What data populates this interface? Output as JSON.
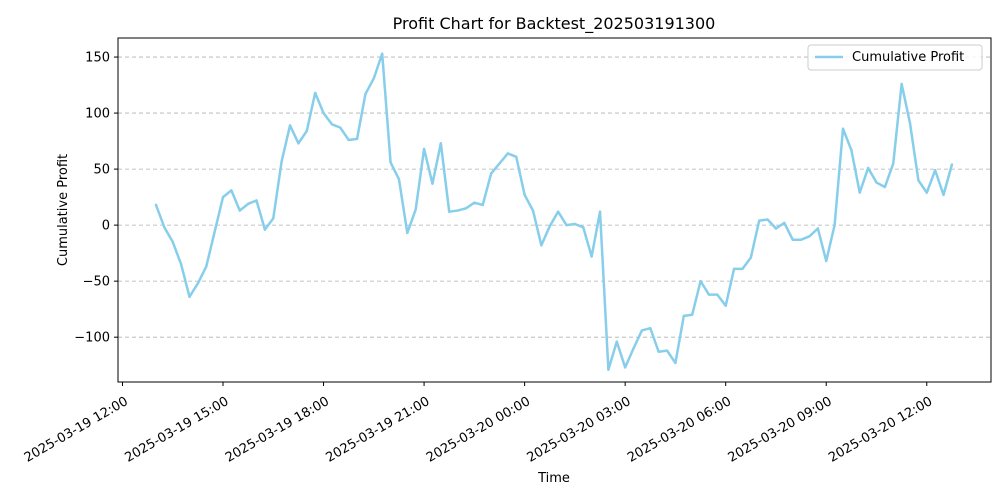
{
  "chart_data": {
    "type": "line",
    "title": "Profit Chart for Backtest_202503191300",
    "xlabel": "Time",
    "ylabel": "Cumulative Profit",
    "xlim": [
      "2025-03-19 11:52",
      "2025-03-20 13:55"
    ],
    "ylim": [
      -140,
      167
    ],
    "x_ticks": [
      {
        "t": "2025-03-19 12:00",
        "label": "2025-03-19 12:00"
      },
      {
        "t": "2025-03-19 15:00",
        "label": "2025-03-19 15:00"
      },
      {
        "t": "2025-03-19 18:00",
        "label": "2025-03-19 18:00"
      },
      {
        "t": "2025-03-19 21:00",
        "label": "2025-03-19 21:00"
      },
      {
        "t": "2025-03-20 00:00",
        "label": "2025-03-20 00:00"
      },
      {
        "t": "2025-03-20 03:00",
        "label": "2025-03-20 03:00"
      },
      {
        "t": "2025-03-20 06:00",
        "label": "2025-03-20 06:00"
      },
      {
        "t": "2025-03-20 09:00",
        "label": "2025-03-20 09:00"
      },
      {
        "t": "2025-03-20 12:00",
        "label": "2025-03-20 12:00"
      }
    ],
    "y_ticks": [
      {
        "v": -100,
        "label": "−100"
      },
      {
        "v": -50,
        "label": "−50"
      },
      {
        "v": 0,
        "label": "0"
      },
      {
        "v": 50,
        "label": "50"
      },
      {
        "v": 100,
        "label": "100"
      },
      {
        "v": 150,
        "label": "150"
      }
    ],
    "grid": "y-dashed",
    "legend": {
      "placement": "top-right"
    },
    "series": [
      {
        "name": "Cumulative Profit",
        "color": "#87ceeb",
        "points": [
          [
            "2025-03-19 13:00",
            18
          ],
          [
            "2025-03-19 13:15",
            -2
          ],
          [
            "2025-03-19 13:30",
            -15
          ],
          [
            "2025-03-19 13:45",
            -35
          ],
          [
            "2025-03-19 14:00",
            -64
          ],
          [
            "2025-03-19 14:15",
            -52
          ],
          [
            "2025-03-19 14:30",
            -37
          ],
          [
            "2025-03-19 14:45",
            -6
          ],
          [
            "2025-03-19 15:00",
            25
          ],
          [
            "2025-03-19 15:15",
            31
          ],
          [
            "2025-03-19 15:30",
            13
          ],
          [
            "2025-03-19 15:45",
            19
          ],
          [
            "2025-03-19 16:00",
            22
          ],
          [
            "2025-03-19 16:15",
            -4
          ],
          [
            "2025-03-19 16:30",
            6
          ],
          [
            "2025-03-19 16:45",
            57
          ],
          [
            "2025-03-19 17:00",
            89
          ],
          [
            "2025-03-19 17:15",
            73
          ],
          [
            "2025-03-19 17:30",
            84
          ],
          [
            "2025-03-19 17:45",
            118
          ],
          [
            "2025-03-19 18:00",
            100
          ],
          [
            "2025-03-19 18:15",
            90
          ],
          [
            "2025-03-19 18:30",
            87
          ],
          [
            "2025-03-19 18:45",
            76
          ],
          [
            "2025-03-19 19:00",
            77
          ],
          [
            "2025-03-19 19:15",
            117
          ],
          [
            "2025-03-19 19:30",
            131
          ],
          [
            "2025-03-19 19:45",
            153
          ],
          [
            "2025-03-19 20:00",
            56
          ],
          [
            "2025-03-19 20:15",
            41
          ],
          [
            "2025-03-19 20:30",
            -7
          ],
          [
            "2025-03-19 20:45",
            14
          ],
          [
            "2025-03-19 21:00",
            68
          ],
          [
            "2025-03-19 21:15",
            37
          ],
          [
            "2025-03-19 21:30",
            73
          ],
          [
            "2025-03-19 21:45",
            12
          ],
          [
            "2025-03-19 22:00",
            13
          ],
          [
            "2025-03-19 22:15",
            15
          ],
          [
            "2025-03-19 22:30",
            20
          ],
          [
            "2025-03-19 22:45",
            18
          ],
          [
            "2025-03-19 23:00",
            46
          ],
          [
            "2025-03-19 23:15",
            55
          ],
          [
            "2025-03-19 23:30",
            64
          ],
          [
            "2025-03-19 23:45",
            61
          ],
          [
            "2025-03-20 00:00",
            27
          ],
          [
            "2025-03-20 00:15",
            13
          ],
          [
            "2025-03-20 00:30",
            -18
          ],
          [
            "2025-03-20 00:45",
            -1
          ],
          [
            "2025-03-20 01:00",
            12
          ],
          [
            "2025-03-20 01:15",
            0
          ],
          [
            "2025-03-20 01:30",
            1
          ],
          [
            "2025-03-20 01:45",
            -2
          ],
          [
            "2025-03-20 02:00",
            -28
          ],
          [
            "2025-03-20 02:15",
            12
          ],
          [
            "2025-03-20 02:30",
            -129
          ],
          [
            "2025-03-20 02:45",
            -104
          ],
          [
            "2025-03-20 03:00",
            -127
          ],
          [
            "2025-03-20 03:15",
            -110
          ],
          [
            "2025-03-20 03:30",
            -94
          ],
          [
            "2025-03-20 03:45",
            -92
          ],
          [
            "2025-03-20 04:00",
            -113
          ],
          [
            "2025-03-20 04:15",
            -112
          ],
          [
            "2025-03-20 04:30",
            -123
          ],
          [
            "2025-03-20 04:45",
            -81
          ],
          [
            "2025-03-20 05:00",
            -80
          ],
          [
            "2025-03-20 05:15",
            -50
          ],
          [
            "2025-03-20 05:30",
            -62
          ],
          [
            "2025-03-20 05:45",
            -62
          ],
          [
            "2025-03-20 06:00",
            -72
          ],
          [
            "2025-03-20 06:15",
            -39
          ],
          [
            "2025-03-20 06:30",
            -39
          ],
          [
            "2025-03-20 06:45",
            -29
          ],
          [
            "2025-03-20 07:00",
            4
          ],
          [
            "2025-03-20 07:15",
            5
          ],
          [
            "2025-03-20 07:30",
            -3
          ],
          [
            "2025-03-20 07:45",
            2
          ],
          [
            "2025-03-20 08:00",
            -13
          ],
          [
            "2025-03-20 08:15",
            -13
          ],
          [
            "2025-03-20 08:30",
            -10
          ],
          [
            "2025-03-20 08:45",
            -3
          ],
          [
            "2025-03-20 09:00",
            -32
          ],
          [
            "2025-03-20 09:15",
            0
          ],
          [
            "2025-03-20 09:30",
            86
          ],
          [
            "2025-03-20 09:45",
            67
          ],
          [
            "2025-03-20 10:00",
            29
          ],
          [
            "2025-03-20 10:15",
            51
          ],
          [
            "2025-03-20 10:30",
            38
          ],
          [
            "2025-03-20 10:45",
            34
          ],
          [
            "2025-03-20 11:00",
            55
          ],
          [
            "2025-03-20 11:15",
            126
          ],
          [
            "2025-03-20 11:30",
            91
          ],
          [
            "2025-03-20 11:45",
            40
          ],
          [
            "2025-03-20 12:00",
            29
          ],
          [
            "2025-03-20 12:15",
            49
          ],
          [
            "2025-03-20 12:30",
            27
          ],
          [
            "2025-03-20 12:45",
            54
          ]
        ]
      }
    ]
  }
}
